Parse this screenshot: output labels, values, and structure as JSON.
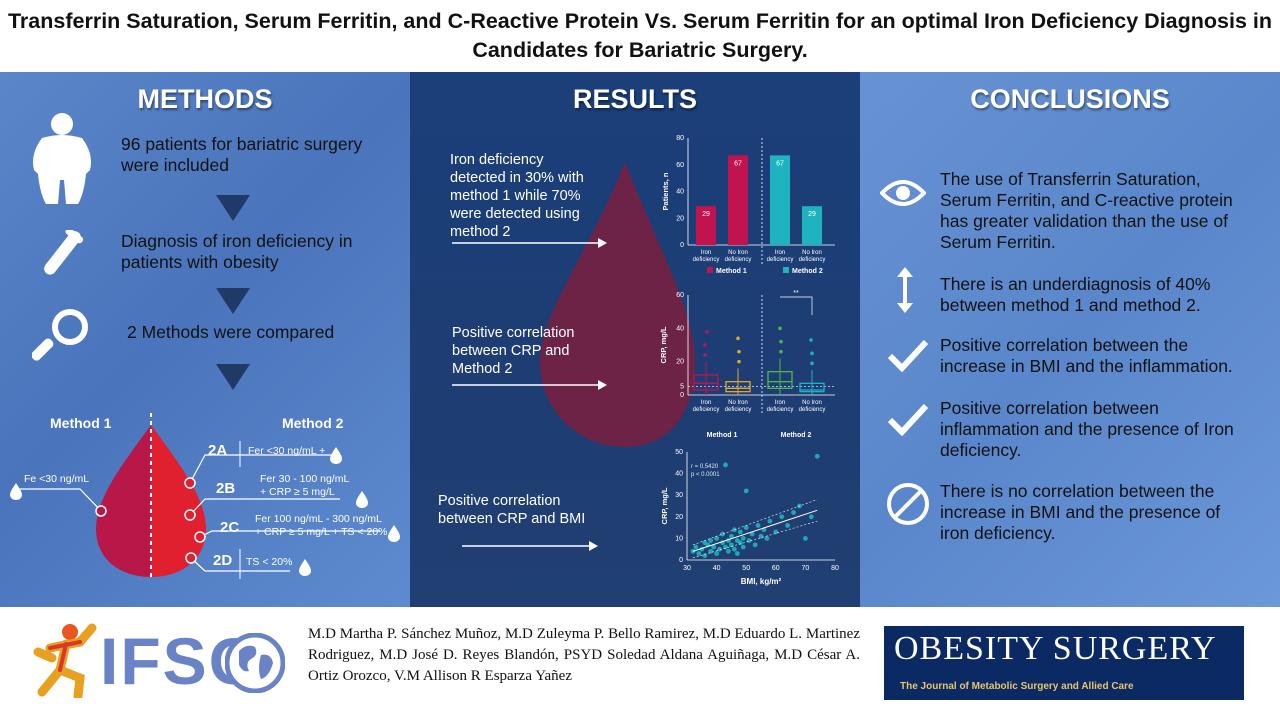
{
  "title": "Transferrin Saturation, Serum Ferritin, and C-Reactive Protein Vs. Serum Ferritin for an optimal Iron Deficiency Diagnosis in Candidates for Bariatric Surgery.",
  "methods": {
    "heading": "METHODS",
    "step1": "96 patients for bariatric surgery were included",
    "step2": "Diagnosis of iron deficiency in patients with obesity",
    "step3": "2 Methods were compared",
    "method1_label": "Method 1",
    "method2_label": "Method 2",
    "m1_criterion": "Fe <30 ng/mL",
    "m2": [
      {
        "code": "2A",
        "line1": "Fer <30 ng/mL +",
        "line2": ""
      },
      {
        "code": "2B",
        "line1": "Fer 30 - 100 ng/mL",
        "line2": "+ CRP ≥ 5 mg/L"
      },
      {
        "code": "2C",
        "line1": "Fer 100 ng/mL - 300 ng/mL",
        "line2": "+ CRP ≥ 5 mg/L + TS < 20%"
      },
      {
        "code": "2D",
        "line1": "TS < 20%",
        "line2": ""
      }
    ]
  },
  "results": {
    "heading": "RESULTS",
    "finding1": "Iron deficiency detected in 30% with method 1 while 70% were detected using method 2",
    "finding2": "Positive correlation between CRP and Method 2",
    "finding3": "Positive correlation between CRP and BMI"
  },
  "chart_data": [
    {
      "type": "bar",
      "ylabel": "Patients, n",
      "ylim": [
        0,
        80
      ],
      "yticks": [
        "0",
        "20",
        "40",
        "60",
        "80"
      ],
      "categories": [
        "Iron deficiency",
        "No Iron deficiency",
        "Iron deficiency",
        "No Iron deficiency"
      ],
      "values": [
        29,
        67,
        67,
        29
      ],
      "value_labels": [
        "29",
        "67",
        "67",
        "29"
      ],
      "groups": [
        "Method 1",
        "Method 1",
        "Method 2",
        "Method 2"
      ],
      "legend": [
        "Method 1",
        "Method 2"
      ],
      "colors": [
        "#c2134f",
        "#c2134f",
        "#1fb3bf",
        "#1fb3bf"
      ]
    },
    {
      "type": "box",
      "ylabel": "CRP, mg/L",
      "ylim": [
        0,
        60
      ],
      "yticks": [
        "0",
        "5",
        "20",
        "40",
        "60"
      ],
      "categories": [
        "Iron deficiency",
        "No Iron deficiency",
        "Iron deficiency",
        "No Iron deficiency"
      ],
      "groups": [
        "Method 1",
        "Method 2"
      ],
      "medians": [
        7,
        4,
        8,
        3
      ],
      "q1": [
        3,
        2,
        4,
        2
      ],
      "q3": [
        12,
        8,
        14,
        7
      ],
      "significance": "**",
      "colors": [
        "#c2134f",
        "#e3a62a",
        "#4bb84a",
        "#1fb3bf"
      ]
    },
    {
      "type": "scatter",
      "xlabel": "BMI, kg/m²",
      "ylabel": "CRP, mg/L",
      "xlim": [
        30,
        80
      ],
      "ylim": [
        0,
        50
      ],
      "xticks": [
        "30",
        "40",
        "50",
        "60",
        "70",
        "80"
      ],
      "yticks": [
        "0",
        "10",
        "20",
        "30",
        "40",
        "50"
      ],
      "annotation_r": "r = 0.5420",
      "annotation_p": "p < 0.0001",
      "points": [
        [
          32,
          4
        ],
        [
          33,
          6
        ],
        [
          34,
          3
        ],
        [
          35,
          5
        ],
        [
          36,
          8
        ],
        [
          36,
          2
        ],
        [
          37,
          7
        ],
        [
          38,
          4
        ],
        [
          38,
          9
        ],
        [
          39,
          6
        ],
        [
          40,
          3
        ],
        [
          40,
          10
        ],
        [
          41,
          5
        ],
        [
          42,
          8
        ],
        [
          42,
          12
        ],
        [
          43,
          6
        ],
        [
          43,
          44
        ],
        [
          44,
          4
        ],
        [
          44,
          9
        ],
        [
          45,
          11
        ],
        [
          45,
          7
        ],
        [
          46,
          5
        ],
        [
          46,
          14
        ],
        [
          47,
          9
        ],
        [
          47,
          3
        ],
        [
          48,
          8
        ],
        [
          48,
          13
        ],
        [
          49,
          6
        ],
        [
          49,
          10
        ],
        [
          50,
          32
        ],
        [
          50,
          15
        ],
        [
          51,
          9
        ],
        [
          52,
          12
        ],
        [
          53,
          7
        ],
        [
          54,
          16
        ],
        [
          55,
          11
        ],
        [
          56,
          14
        ],
        [
          57,
          10
        ],
        [
          58,
          18
        ],
        [
          60,
          13
        ],
        [
          62,
          20
        ],
        [
          64,
          16
        ],
        [
          66,
          22
        ],
        [
          68,
          25
        ],
        [
          70,
          10
        ],
        [
          72,
          20
        ],
        [
          74,
          48
        ]
      ],
      "color": "#1fb3bf"
    }
  ],
  "conclusions": {
    "heading": "CONCLUSIONS",
    "items": [
      "The use of Transferrin Saturation, Serum Ferritin, and C-reactive protein has greater validation than the use of Serum Ferritin.",
      "There is an underdiagnosis of 40% between method 1 and method 2.",
      "Positive correlation between the increase in BMI and the inflammation.",
      "Positive correlation between inflammation and the presence of Iron deficiency.",
      "There is no correlation between the increase in BMI and the presence of iron deficiency."
    ]
  },
  "footer": {
    "logo_text": "IFSO",
    "authors": "M.D Martha P. Sánchez Muñoz, M.D Zuleyma P. Bello Ramirez, M.D Eduardo L. Martinez Rodriguez, M.D José D. Reyes Blandón, PSYD Soledad Aldana Aguiñaga, M.D César A. Ortiz Orozco, V.M Allison R Esparza Yañez",
    "journal_name": "OBESITY SURGERY",
    "journal_subtitle": "The Journal of Metabolic Surgery and Allied Care"
  },
  "colors": {
    "method1": "#c2134f",
    "method2": "#1fb3bf",
    "accent_blood": "#c41535"
  }
}
